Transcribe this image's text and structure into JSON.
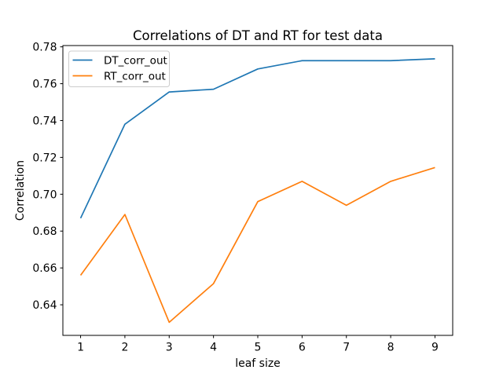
{
  "chart_data": {
    "type": "line",
    "title": "Correlations of DT and RT for test data",
    "xlabel": "leaf size",
    "ylabel": "Correlation",
    "x": [
      1,
      2,
      3,
      4,
      5,
      6,
      7,
      8,
      9
    ],
    "series": [
      {
        "name": "DT_corr_out",
        "color": "#1f77b4",
        "values": [
          0.687,
          0.738,
          0.7555,
          0.757,
          0.768,
          0.7725,
          0.7725,
          0.7725,
          0.7735
        ]
      },
      {
        "name": "RT_corr_out",
        "color": "#ff7f0e",
        "values": [
          0.656,
          0.689,
          0.6305,
          0.6515,
          0.696,
          0.707,
          0.694,
          0.707,
          0.7145
        ]
      }
    ],
    "xlim": [
      0.6,
      9.4
    ],
    "ylim": [
      0.6234,
      0.7807
    ],
    "xticks": [
      1,
      2,
      3,
      4,
      5,
      6,
      7,
      8,
      9
    ],
    "xtick_labels": [
      "1",
      "2",
      "3",
      "4",
      "5",
      "6",
      "7",
      "8",
      "9"
    ],
    "yticks": [
      0.64,
      0.66,
      0.68,
      0.7,
      0.72,
      0.74,
      0.76,
      0.78
    ],
    "ytick_labels": [
      "0.64",
      "0.66",
      "0.68",
      "0.70",
      "0.72",
      "0.74",
      "0.76",
      "0.78"
    ],
    "grid": false,
    "legend": {
      "position": "upper left",
      "entries": [
        "DT_corr_out",
        "RT_corr_out"
      ]
    },
    "background_color": "#ffffff",
    "axis_color": "#000000",
    "legend_border_color": "#cccccc"
  }
}
